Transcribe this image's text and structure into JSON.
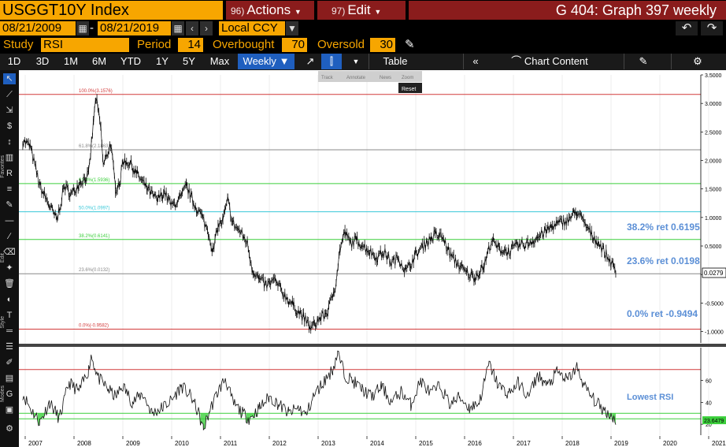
{
  "header": {
    "ticker": "USGGT10Y Index",
    "actions_num": "96)",
    "actions_label": "Actions",
    "edit_num": "97)",
    "edit_label": "Edit",
    "graph_title": "G 404: Graph 397 weekly"
  },
  "range": {
    "start": "08/21/2009",
    "end": "08/21/2019",
    "currency": "Local CCY"
  },
  "study": {
    "label": "Study",
    "value": "RSI",
    "period_label": "Period",
    "period": "14",
    "overbought_label": "Overbought",
    "overbought": "70",
    "oversold_label": "Oversold",
    "oversold": "30"
  },
  "toolbar": {
    "periods": [
      "1D",
      "3D",
      "1M",
      "6M",
      "YTD",
      "1Y",
      "5Y",
      "Max"
    ],
    "frequency": "Weekly",
    "table_label": "Table",
    "chart_content_label": "Chart Content"
  },
  "hover_tools": [
    "Track",
    "Annotate",
    "News",
    "Zoom"
  ],
  "reset_label": "Reset",
  "side_labels": [
    "Favorites",
    "Edit",
    "Style",
    "Modes"
  ],
  "chart_data": {
    "type": "line",
    "x_ticks": [
      "2007",
      "2008",
      "2009",
      "2010",
      "2011",
      "2012",
      "2013",
      "2014",
      "2015",
      "2016",
      "2017",
      "2018",
      "2019",
      "2020",
      "2021"
    ],
    "y_ticks": [
      "3.5000",
      "3.0000",
      "2.5000",
      "2.0000",
      "1.5000",
      "1.0000",
      "0.5000",
      "0.0000",
      "-0.5000",
      "-1.0000"
    ],
    "ylim": [
      -1.2,
      3.5
    ],
    "last_price": "0.0279",
    "fib_levels": [
      {
        "label": "100.0%(3.1576)",
        "value": 3.1576,
        "color": "#d23b3b"
      },
      {
        "label": "61.8%(2.1863)",
        "value": 2.1863,
        "color": "#888888"
      },
      {
        "label": "61.8%(1.5936)",
        "value": 1.5936,
        "color": "#3ccf3c"
      },
      {
        "label": "50.0%(1.0997)",
        "value": 1.0997,
        "color": "#38c8d8"
      },
      {
        "label": "38.2%(0.6141)",
        "value": 0.6141,
        "color": "#3ccf3c"
      },
      {
        "label": "23.6%(0.0132)",
        "value": 0.0132,
        "color": "#888888"
      },
      {
        "label": "0.0%(-0.9582)",
        "value": -0.9582,
        "color": "#d23b3b"
      }
    ],
    "annotations": [
      "38.2% ret 0.6195",
      "23.6% ret 0.0198",
      "0.0% ret -0.9494"
    ],
    "price_keypoints": [
      [
        2006.95,
        2.35
      ],
      [
        2007.1,
        2.25
      ],
      [
        2007.3,
        1.55
      ],
      [
        2007.5,
        1.2
      ],
      [
        2007.65,
        0.95
      ],
      [
        2007.8,
        1.55
      ],
      [
        2007.95,
        1.4
      ],
      [
        2008.1,
        1.6
      ],
      [
        2008.3,
        1.75
      ],
      [
        2008.4,
        2.7
      ],
      [
        2008.45,
        3.1
      ],
      [
        2008.55,
        2.55
      ],
      [
        2008.6,
        1.9
      ],
      [
        2008.75,
        2.3
      ],
      [
        2008.85,
        1.5
      ],
      [
        2008.95,
        1.65
      ],
      [
        2009.0,
        2.0
      ],
      [
        2009.15,
        1.95
      ],
      [
        2009.3,
        1.75
      ],
      [
        2009.5,
        1.5
      ],
      [
        2009.7,
        1.3
      ],
      [
        2009.85,
        1.45
      ],
      [
        2010.0,
        1.2
      ],
      [
        2010.2,
        1.35
      ],
      [
        2010.3,
        1.55
      ],
      [
        2010.45,
        1.25
      ],
      [
        2010.6,
        1.05
      ],
      [
        2010.75,
        0.75
      ],
      [
        2010.85,
        0.4
      ],
      [
        2010.95,
        0.85
      ],
      [
        2011.05,
        0.95
      ],
      [
        2011.15,
        1.3
      ],
      [
        2011.25,
        0.9
      ],
      [
        2011.4,
        0.75
      ],
      [
        2011.55,
        0.55
      ],
      [
        2011.65,
        0.1
      ],
      [
        2011.8,
        -0.1
      ],
      [
        2011.95,
        -0.2
      ],
      [
        2012.1,
        -0.1
      ],
      [
        2012.3,
        -0.35
      ],
      [
        2012.5,
        -0.55
      ],
      [
        2012.7,
        -0.75
      ],
      [
        2012.85,
        -0.95
      ],
      [
        2013.0,
        -0.8
      ],
      [
        2013.2,
        -0.65
      ],
      [
        2013.35,
        -0.2
      ],
      [
        2013.45,
        0.45
      ],
      [
        2013.55,
        0.75
      ],
      [
        2013.65,
        0.55
      ],
      [
        2013.8,
        0.6
      ],
      [
        2014.0,
        0.45
      ],
      [
        2014.2,
        0.3
      ],
      [
        2014.35,
        0.4
      ],
      [
        2014.5,
        0.2
      ],
      [
        2014.65,
        0.3
      ],
      [
        2014.8,
        0.05
      ],
      [
        2015.0,
        0.35
      ],
      [
        2015.2,
        0.55
      ],
      [
        2015.4,
        0.7
      ],
      [
        2015.55,
        0.65
      ],
      [
        2015.7,
        0.35
      ],
      [
        2015.85,
        0.2
      ],
      [
        2016.0,
        0.05
      ],
      [
        2016.2,
        -0.05
      ],
      [
        2016.4,
        0.15
      ],
      [
        2016.55,
        0.6
      ],
      [
        2016.7,
        0.45
      ],
      [
        2016.9,
        0.4
      ],
      [
        2017.1,
        0.5
      ],
      [
        2017.3,
        0.55
      ],
      [
        2017.5,
        0.65
      ],
      [
        2017.65,
        0.75
      ],
      [
        2017.8,
        0.85
      ],
      [
        2017.95,
        0.9
      ],
      [
        2018.1,
        0.95
      ],
      [
        2018.3,
        1.1
      ],
      [
        2018.45,
        0.9
      ],
      [
        2018.6,
        0.7
      ],
      [
        2018.75,
        0.55
      ],
      [
        2018.9,
        0.35
      ],
      [
        2019.0,
        0.2
      ],
      [
        2019.1,
        0.03
      ]
    ],
    "rsi": {
      "y_ticks": [
        "60",
        "40",
        "20"
      ],
      "overbought": 70,
      "oversold": 30,
      "lowest_line": 25,
      "label": "Lowest RSI",
      "last_value": "23.6479",
      "keypoints": [
        [
          2006.95,
          48
        ],
        [
          2007.1,
          35
        ],
        [
          2007.3,
          22
        ],
        [
          2007.5,
          40
        ],
        [
          2007.7,
          25
        ],
        [
          2007.9,
          58
        ],
        [
          2008.1,
          50
        ],
        [
          2008.3,
          70
        ],
        [
          2008.35,
          83
        ],
        [
          2008.5,
          62
        ],
        [
          2008.7,
          52
        ],
        [
          2008.85,
          45
        ],
        [
          2009.0,
          55
        ],
        [
          2009.2,
          40
        ],
        [
          2009.4,
          48
        ],
        [
          2009.6,
          30
        ],
        [
          2009.8,
          35
        ],
        [
          2010.0,
          42
        ],
        [
          2010.2,
          55
        ],
        [
          2010.4,
          45
        ],
        [
          2010.55,
          30
        ],
        [
          2010.65,
          15
        ],
        [
          2010.8,
          35
        ],
        [
          2010.95,
          50
        ],
        [
          2011.1,
          62
        ],
        [
          2011.25,
          40
        ],
        [
          2011.45,
          30
        ],
        [
          2011.6,
          25
        ],
        [
          2011.8,
          35
        ],
        [
          2012.0,
          45
        ],
        [
          2012.2,
          38
        ],
        [
          2012.4,
          30
        ],
        [
          2012.6,
          35
        ],
        [
          2012.75,
          28
        ],
        [
          2012.9,
          45
        ],
        [
          2013.05,
          55
        ],
        [
          2013.3,
          70
        ],
        [
          2013.4,
          85
        ],
        [
          2013.55,
          65
        ],
        [
          2013.7,
          60
        ],
        [
          2013.9,
          52
        ],
        [
          2014.1,
          45
        ],
        [
          2014.3,
          55
        ],
        [
          2014.5,
          40
        ],
        [
          2014.7,
          50
        ],
        [
          2014.9,
          38
        ],
        [
          2015.1,
          60
        ],
        [
          2015.3,
          48
        ],
        [
          2015.5,
          55
        ],
        [
          2015.7,
          38
        ],
        [
          2015.9,
          45
        ],
        [
          2016.1,
          35
        ],
        [
          2016.3,
          40
        ],
        [
          2016.5,
          75
        ],
        [
          2016.7,
          55
        ],
        [
          2016.9,
          48
        ],
        [
          2017.1,
          58
        ],
        [
          2017.3,
          45
        ],
        [
          2017.5,
          65
        ],
        [
          2017.7,
          55
        ],
        [
          2017.9,
          68
        ],
        [
          2018.1,
          60
        ],
        [
          2018.3,
          72
        ],
        [
          2018.45,
          55
        ],
        [
          2018.6,
          45
        ],
        [
          2018.8,
          35
        ],
        [
          2019.0,
          28
        ],
        [
          2019.1,
          24
        ]
      ]
    }
  }
}
